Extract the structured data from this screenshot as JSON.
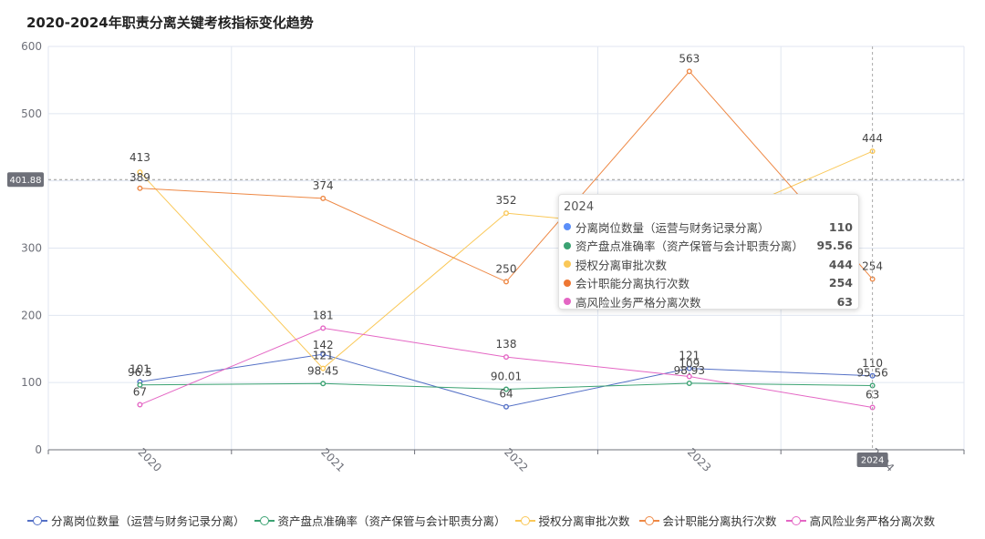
{
  "chart_data": {
    "type": "line",
    "title": "2020-2024年职责分离关键考核指标变化趋势",
    "categories": [
      "2020",
      "2021",
      "2022",
      "2023",
      "2024"
    ],
    "ylim": [
      0,
      600
    ],
    "yticks": [
      0,
      100,
      200,
      300,
      400,
      500,
      600
    ],
    "grid": true,
    "legend_position": "bottom",
    "series": [
      {
        "name": "分离岗位数量（运营与财务记录分离）",
        "color": "#5470c6",
        "values": [
          101,
          142,
          64,
          121,
          110
        ],
        "labels": [
          "101",
          "142",
          "64",
          "121",
          "110"
        ]
      },
      {
        "name": "资产盘点准确率（资产保管与会计职责分离）",
        "color": "#3ba272",
        "values": [
          96.5,
          98.45,
          90.01,
          98.93,
          95.56
        ],
        "labels": [
          "96.5",
          "98.45",
          "90.01",
          "98.93",
          "95.56"
        ]
      },
      {
        "name": "授权分离审批次数",
        "color": "#fac858",
        "values": [
          413,
          121,
          352,
          326,
          444
        ],
        "labels": [
          "413",
          "121",
          "352",
          "",
          "444"
        ]
      },
      {
        "name": "会计职能分离执行次数",
        "color": "#ee8844",
        "values": [
          389,
          374,
          250,
          563,
          254
        ],
        "labels": [
          "389",
          "374",
          "250",
          "563",
          "254"
        ]
      },
      {
        "name": "高风险业务严格分离次数",
        "color": "#e466c4",
        "values": [
          67,
          181,
          138,
          109,
          63
        ],
        "labels": [
          "67",
          "181",
          "138",
          "109",
          "63"
        ]
      }
    ],
    "axis_pointer": {
      "y_value": "401.88",
      "x_value": "2024"
    },
    "tooltip": {
      "title": "2024",
      "items": [
        {
          "name": "分离岗位数量（运营与财务记录分离）",
          "value": "110",
          "color": "#5b8ff9"
        },
        {
          "name": "资产盘点准确率（资产保管与会计职责分离）",
          "value": "95.56",
          "color": "#3ba272"
        },
        {
          "name": "授权分离审批次数",
          "value": "444",
          "color": "#fac858"
        },
        {
          "name": "会计职能分离执行次数",
          "value": "254",
          "color": "#ee7733"
        },
        {
          "name": "高风险业务严格分离次数",
          "value": "63",
          "color": "#e466c4"
        }
      ]
    }
  }
}
